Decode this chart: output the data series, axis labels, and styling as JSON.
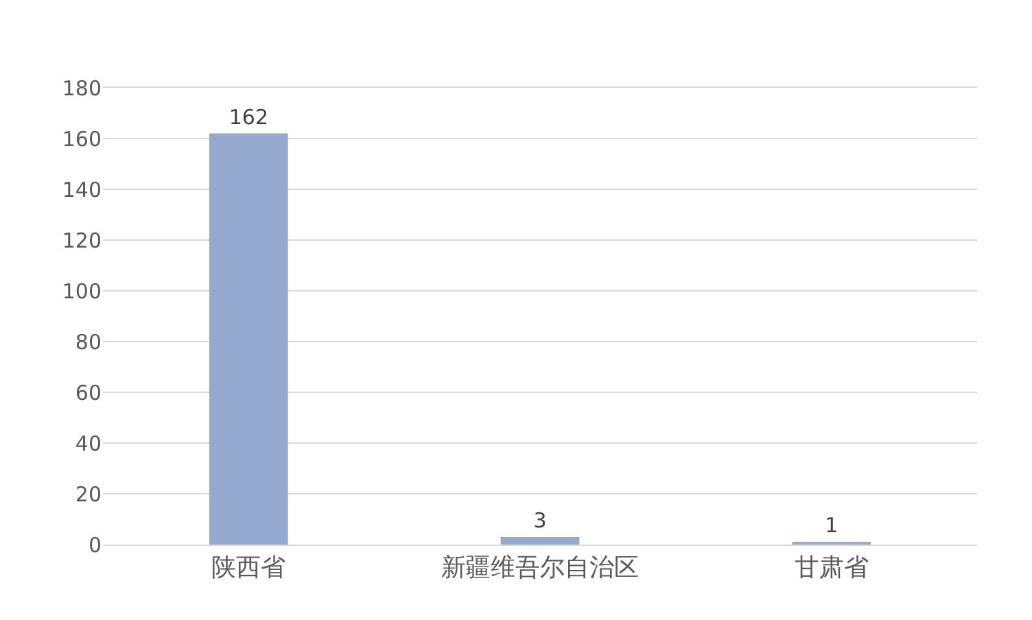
{
  "chart_data": {
    "type": "bar",
    "categories": [
      "陕西省",
      "新疆维吾尔自治区",
      "甘肃省"
    ],
    "values": [
      162,
      3,
      1
    ],
    "color": "#95a9cf",
    "ylim": [
      0,
      180
    ],
    "yticks": [
      0,
      20,
      40,
      60,
      80,
      100,
      120,
      140,
      160,
      180
    ],
    "grid": "y",
    "data_labels": true
  }
}
